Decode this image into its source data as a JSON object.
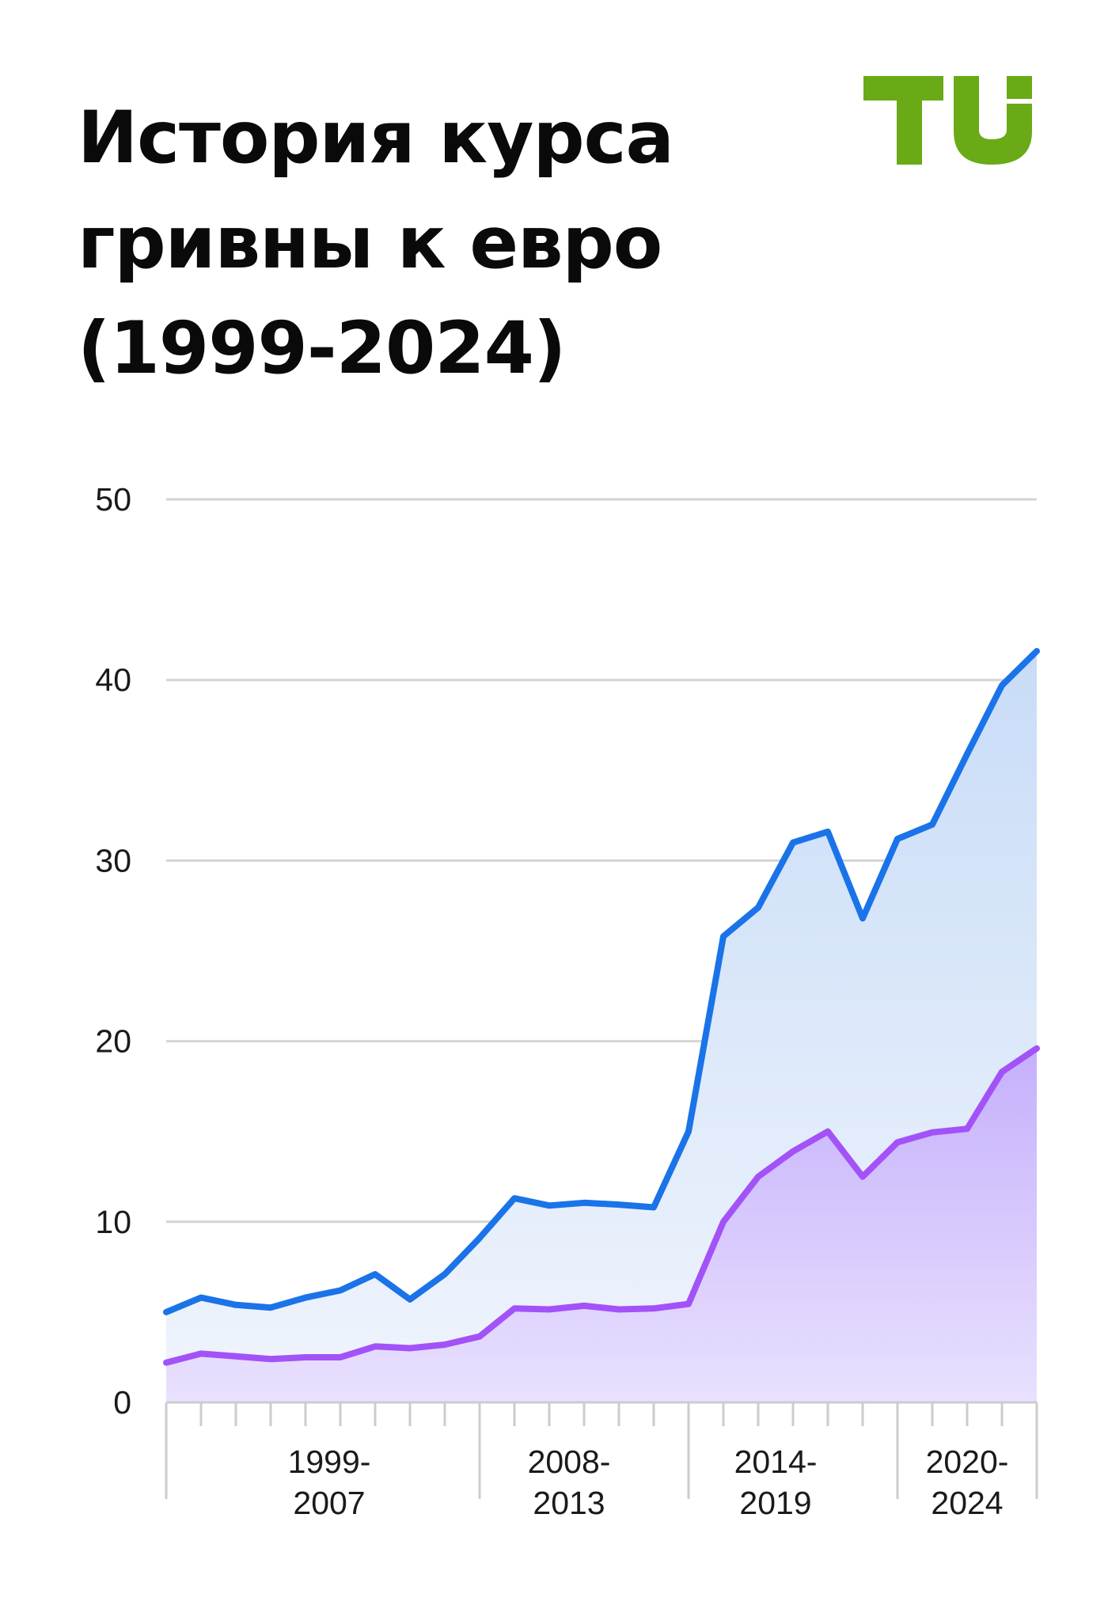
{
  "title_lines": [
    "История курса",
    "гривны к евро",
    "(1999-2024)"
  ],
  "logo": {
    "text": "TU",
    "color": "#6aaa16"
  },
  "colors": {
    "blue_line": "#1a73e8",
    "purple_line": "#a352f7",
    "blue_fill_top": "#c8dcf7",
    "blue_fill_bottom": "#eef3fc",
    "purple_fill_top": "#c5b0fb",
    "purple_fill_bottom": "#e9e1fe",
    "grid": "#d4d4d4",
    "axis": "#cccccc"
  },
  "chart_data": {
    "type": "area",
    "title": "История курса гривны к евро (1999-2024)",
    "x": [
      1999,
      2000,
      2001,
      2002,
      2003,
      2004,
      2005,
      2006,
      2007,
      2008,
      2009,
      2010,
      2011,
      2012,
      2013,
      2014,
      2015,
      2016,
      2017,
      2018,
      2019,
      2020,
      2021,
      2022,
      2023,
      2024
    ],
    "series": [
      {
        "values": [
          5.0,
          5.8,
          5.4,
          5.25,
          5.8,
          6.2,
          7.1,
          5.7,
          7.1,
          9.1,
          11.3,
          10.9,
          11.05,
          10.95,
          10.8,
          15.0,
          25.8,
          27.4,
          31.0,
          31.6,
          26.8,
          31.2,
          32.0,
          35.9,
          39.7,
          41.6
        ]
      },
      {
        "values": [
          2.2,
          2.7,
          2.55,
          2.4,
          2.5,
          2.5,
          3.1,
          3.0,
          3.2,
          3.65,
          5.2,
          5.15,
          5.35,
          5.15,
          5.2,
          5.45,
          10.0,
          12.5,
          13.9,
          15.0,
          12.5,
          14.4,
          14.95,
          15.15,
          18.3,
          19.6
        ]
      }
    ],
    "ylim": [
      0,
      50
    ],
    "yticks": [
      0,
      10,
      20,
      30,
      40,
      50
    ],
    "x_groups": [
      {
        "label": [
          "1999-",
          "2007"
        ],
        "from": 1999,
        "to": 2007
      },
      {
        "label": [
          "2008-",
          "2013"
        ],
        "from": 2008,
        "to": 2013
      },
      {
        "label": [
          "2014-",
          "2019"
        ],
        "from": 2014,
        "to": 2019
      },
      {
        "label": [
          "2020-",
          "2024"
        ],
        "from": 2020,
        "to": 2024
      }
    ],
    "grid": true,
    "legend": "none"
  }
}
